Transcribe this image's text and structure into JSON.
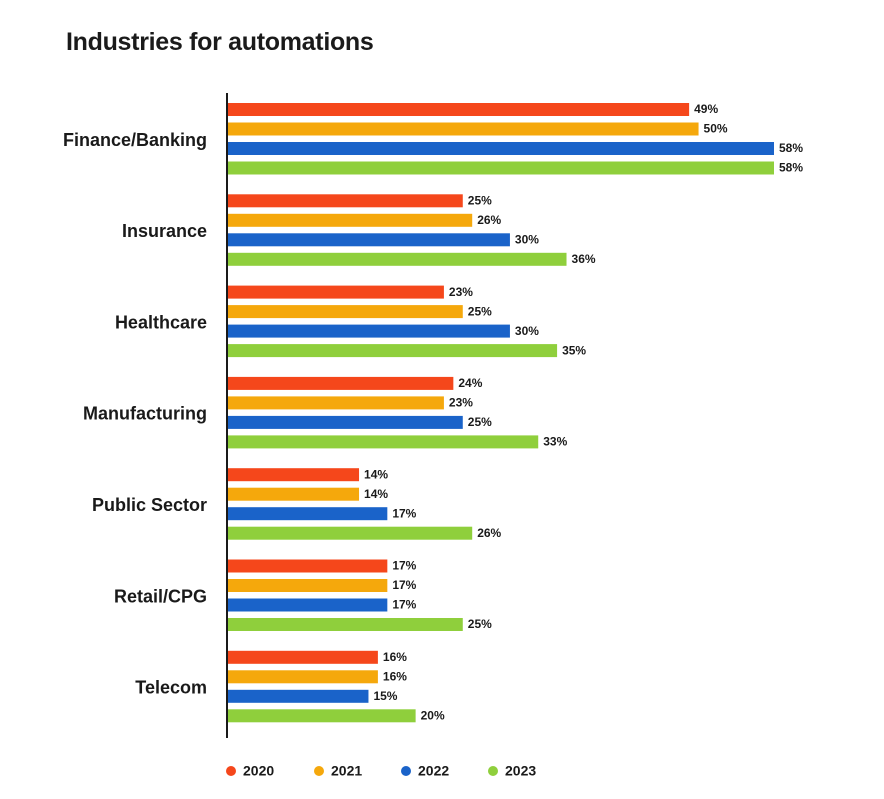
{
  "chart_data": {
    "type": "bar",
    "orientation": "horizontal",
    "title": "Industries for automations",
    "categories": [
      "Finance/Banking",
      "Insurance",
      "Healthcare",
      "Manufacturing",
      "Public Sector",
      "Retail/CPG",
      "Telecom"
    ],
    "series": [
      {
        "name": "2020",
        "color": "#f5471b",
        "values": [
          49,
          25,
          23,
          24,
          14,
          17,
          16
        ]
      },
      {
        "name": "2021",
        "color": "#f5a80c",
        "values": [
          50,
          26,
          25,
          23,
          14,
          17,
          16
        ]
      },
      {
        "name": "2022",
        "color": "#1a63c9",
        "values": [
          58,
          30,
          30,
          25,
          17,
          17,
          15
        ]
      },
      {
        "name": "2023",
        "color": "#8fcf3c",
        "values": [
          58,
          36,
          35,
          33,
          26,
          25,
          20
        ]
      }
    ],
    "value_suffix": "%",
    "xlim": [
      0,
      58
    ],
    "grid": false,
    "legend_position": "bottom-left"
  }
}
